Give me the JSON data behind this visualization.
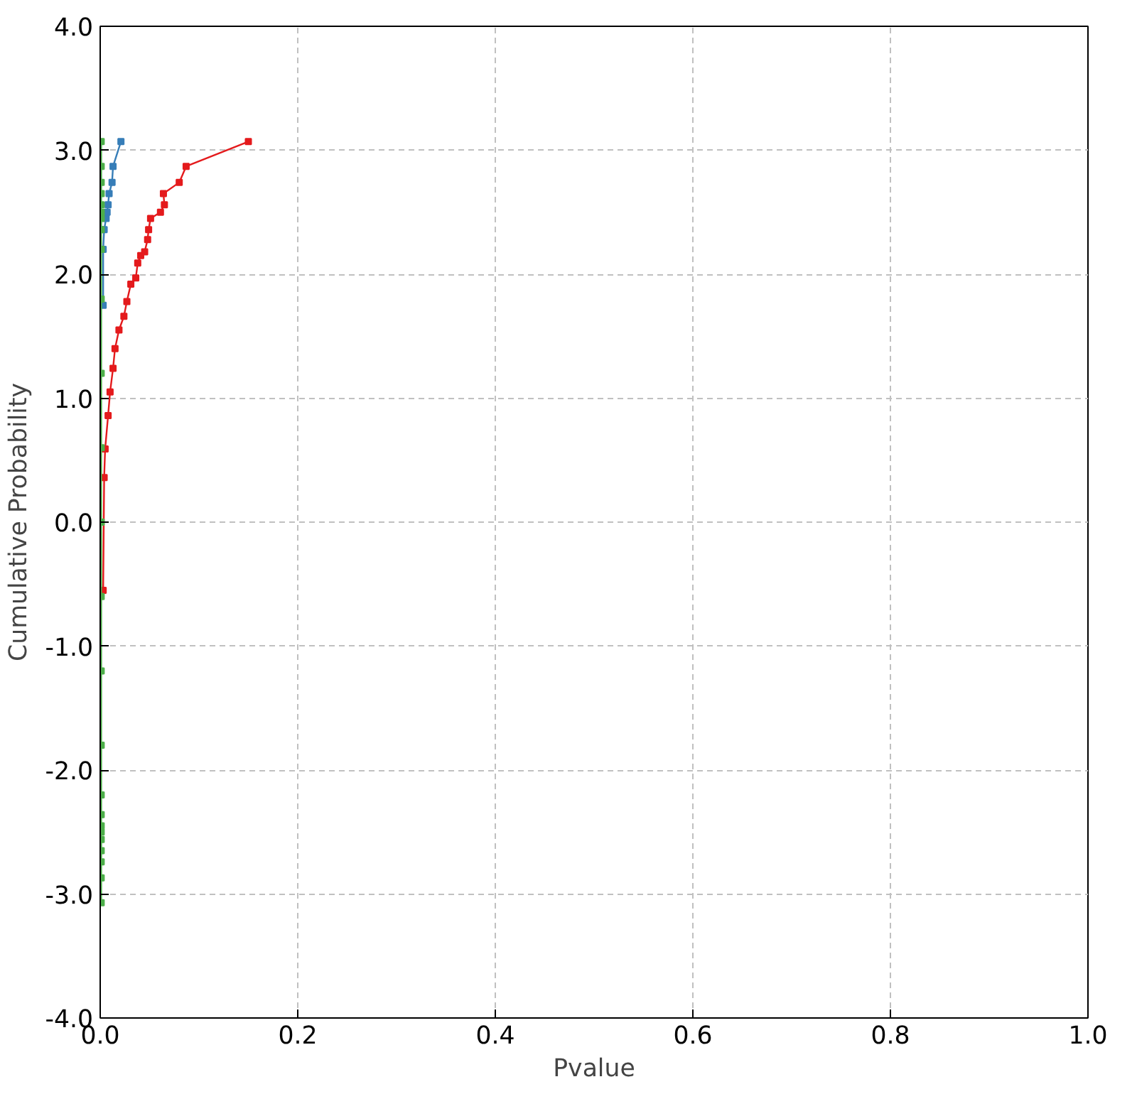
{
  "chart_data": {
    "type": "line",
    "xlabel": "Pvalue",
    "ylabel": "Cumulative Probability",
    "xlim": [
      0,
      1
    ],
    "ylim": [
      -4,
      4
    ],
    "xticks": [
      {
        "value": 0,
        "label": "0.0"
      },
      0.2,
      0.4,
      0.6,
      0.8,
      {
        "value": 1,
        "label": "1.0"
      }
    ],
    "yticks": [
      {
        "value": -4,
        "label": "-4.0"
      },
      {
        "value": -3,
        "label": "-3.0"
      },
      {
        "value": -2,
        "label": "-2.0"
      },
      {
        "value": -1,
        "label": "-1.0"
      },
      {
        "value": 0,
        "label": "0.0"
      },
      {
        "value": 1,
        "label": "1.0"
      },
      {
        "value": 2,
        "label": "2.0"
      },
      {
        "value": 3,
        "label": "3.0"
      },
      {
        "value": 4,
        "label": "4.0"
      }
    ],
    "grid": true,
    "marker": "square",
    "line_style": "solid",
    "series": [
      {
        "color": "#e41a1c",
        "x": [
          0.003,
          0.004,
          0.005,
          0.008,
          0.01,
          0.013,
          0.015,
          0.019,
          0.024,
          0.027,
          0.031,
          0.036,
          0.038,
          0.041,
          0.045,
          0.048,
          0.049,
          0.051,
          0.061,
          0.065,
          0.064,
          0.08,
          0.087,
          0.15
        ],
        "values": [
          -0.55,
          0.36,
          0.59,
          0.86,
          1.05,
          1.24,
          1.4,
          1.55,
          1.66,
          1.78,
          1.92,
          1.97,
          2.09,
          2.15,
          2.18,
          2.28,
          2.36,
          2.45,
          2.5,
          2.56,
          2.65,
          2.74,
          2.87,
          3.07
        ]
      },
      {
        "color": "#377eb8",
        "x": [
          0.003,
          0.003,
          0.004,
          0.006,
          0.007,
          0.008,
          0.009,
          0.012,
          0.013,
          0.021
        ],
        "values": [
          1.75,
          2.2,
          2.36,
          2.45,
          2.5,
          2.56,
          2.65,
          2.74,
          2.87,
          3.07
        ]
      },
      {
        "color": "#4daf4a",
        "x": [
          0.001,
          0.001,
          0.001,
          0.001,
          0.001,
          0.001,
          0.001,
          0.001,
          0.001,
          0.001,
          0.001,
          0.001,
          0.001,
          0.001,
          0.001,
          0.001,
          0.001,
          0.001,
          0.001,
          0.001,
          0.001,
          0.001,
          0.001,
          0.001,
          0.001
        ],
        "values": [
          -3.07,
          -2.87,
          -2.74,
          -2.65,
          -2.56,
          -2.5,
          -2.45,
          -2.36,
          -2.2,
          -1.8,
          -1.2,
          -0.6,
          0.0,
          0.6,
          1.2,
          1.8,
          2.2,
          2.36,
          2.45,
          2.5,
          2.56,
          2.65,
          2.74,
          2.87,
          3.07
        ]
      }
    ]
  }
}
